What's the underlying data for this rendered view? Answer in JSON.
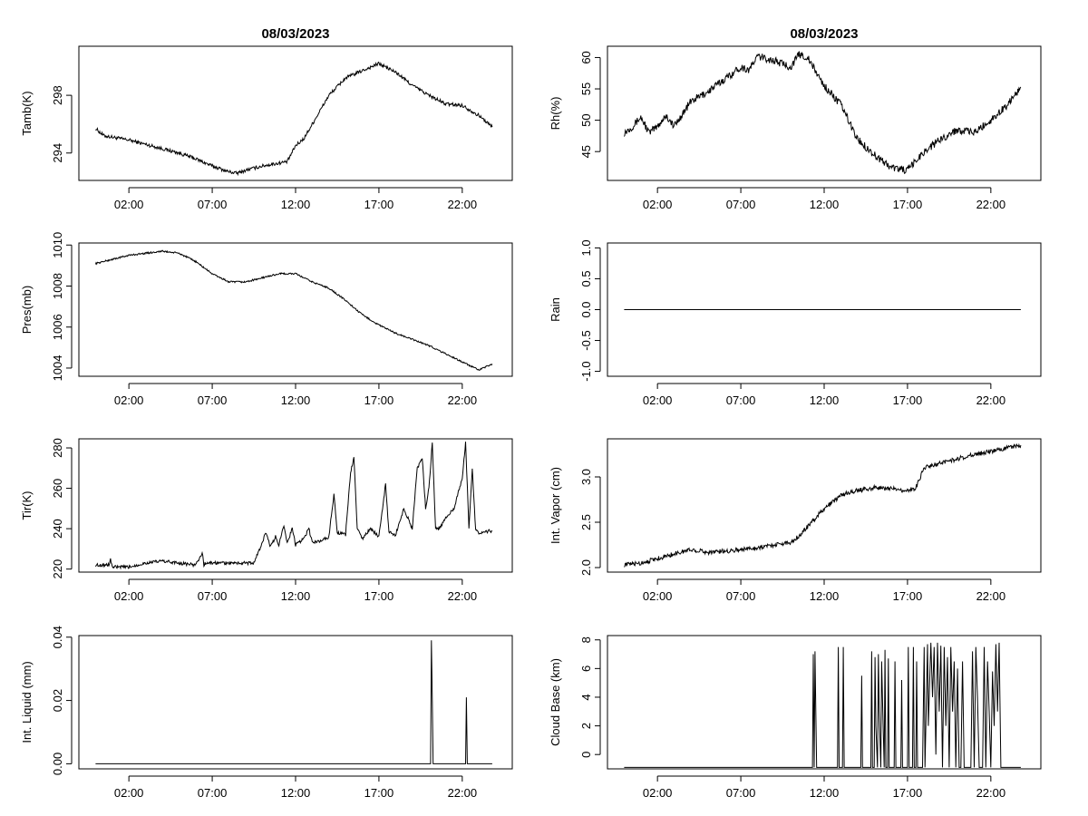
{
  "chart_data": [
    {
      "type": "line",
      "title": "08/03/2023",
      "xlabel": "",
      "ylabel": "Tamb(K)",
      "x_ticks": [
        2,
        7,
        12,
        17,
        22
      ],
      "x_tick_labels": [
        "02:00",
        "07:00",
        "12:00",
        "17:00",
        "22:00"
      ],
      "xlim": [
        -1,
        25
      ],
      "y_ticks": [
        294,
        298
      ],
      "y_tick_labels": [
        "294",
        "298"
      ],
      "ylim": [
        292.1,
        301.4
      ],
      "series": [
        {
          "name": "Tamb(K)",
          "x": [
            0,
            0.5,
            1,
            2,
            3,
            4,
            5,
            6,
            7,
            8,
            8.5,
            9,
            10,
            11,
            11.5,
            12,
            12.5,
            13,
            13.5,
            14,
            15,
            16,
            17,
            18,
            19,
            20,
            21,
            22,
            23,
            23.8
          ],
          "y": [
            295.7,
            295.2,
            295.1,
            294.9,
            294.6,
            294.3,
            294,
            293.6,
            293.1,
            292.7,
            292.6,
            292.8,
            293.1,
            293.3,
            293.4,
            294.5,
            295,
            296,
            297,
            298,
            299.2,
            299.7,
            300.2,
            299.6,
            298.7,
            298,
            297.4,
            297.3,
            296.6,
            295.8
          ]
        }
      ]
    },
    {
      "type": "line",
      "title": "08/03/2023",
      "xlabel": "",
      "ylabel": "Rh(%)",
      "x_ticks": [
        2,
        7,
        12,
        17,
        22
      ],
      "x_tick_labels": [
        "02:00",
        "07:00",
        "12:00",
        "17:00",
        "22:00"
      ],
      "xlim": [
        -1,
        25
      ],
      "y_ticks": [
        45,
        50,
        55,
        60
      ],
      "y_tick_labels": [
        "45",
        "50",
        "55",
        "60"
      ],
      "ylim": [
        40.4,
        61.8
      ],
      "series": [
        {
          "name": "Rh(%)",
          "x": [
            0,
            0.5,
            1,
            1.5,
            2,
            2.5,
            3,
            3.5,
            4,
            5,
            6,
            7,
            7.5,
            8,
            9,
            10,
            10.5,
            11,
            12,
            13,
            14,
            15,
            16,
            17,
            18,
            19,
            20,
            21,
            22,
            23,
            23.8
          ],
          "y": [
            48,
            49,
            50.5,
            48,
            49,
            50.8,
            49,
            51,
            53,
            54.5,
            56.5,
            58.5,
            58,
            60.2,
            59.5,
            58.5,
            60.5,
            60,
            55.5,
            52.5,
            47,
            44.5,
            42.5,
            42,
            45,
            47,
            48.5,
            48,
            50,
            52.5,
            55.3
          ]
        }
      ]
    },
    {
      "type": "line",
      "title": "",
      "xlabel": "",
      "ylabel": "Pres(mb)",
      "x_ticks": [
        2,
        7,
        12,
        17,
        22
      ],
      "x_tick_labels": [
        "02:00",
        "07:00",
        "12:00",
        "17:00",
        "22:00"
      ],
      "xlim": [
        -1,
        25
      ],
      "y_ticks": [
        1004,
        1006,
        1008,
        1010
      ],
      "y_tick_labels": [
        "1004",
        "1006",
        "1008",
        "1010"
      ],
      "ylim": [
        1003.6,
        1010.1
      ],
      "series": [
        {
          "name": "Pres(mb)",
          "x": [
            0,
            1,
            2,
            3,
            4,
            5,
            6,
            7,
            8,
            9,
            10,
            11,
            12,
            13,
            14,
            15,
            16,
            17,
            18,
            19,
            20,
            21,
            22,
            23,
            23.8
          ],
          "y": [
            1009.1,
            1009.3,
            1009.5,
            1009.6,
            1009.7,
            1009.6,
            1009.2,
            1008.6,
            1008.2,
            1008.2,
            1008.4,
            1008.6,
            1008.6,
            1008.2,
            1007.9,
            1007.3,
            1006.6,
            1006.1,
            1005.7,
            1005.4,
            1005.1,
            1004.7,
            1004.3,
            1003.9,
            1004.2
          ]
        }
      ]
    },
    {
      "type": "line",
      "title": "",
      "xlabel": "",
      "ylabel": "Rain",
      "x_ticks": [
        2,
        7,
        12,
        17,
        22
      ],
      "x_tick_labels": [
        "02:00",
        "07:00",
        "12:00",
        "17:00",
        "22:00"
      ],
      "xlim": [
        -1,
        25
      ],
      "y_ticks": [
        -1.0,
        -0.5,
        0.0,
        0.5,
        1.0
      ],
      "y_tick_labels": [
        "-1.0",
        "-0.5",
        "0.0",
        "0.5",
        "1.0"
      ],
      "ylim": [
        -1.08,
        1.08
      ],
      "series": [
        {
          "name": "Rain",
          "x": [
            0,
            23.8
          ],
          "y": [
            0,
            0
          ]
        }
      ]
    },
    {
      "type": "line",
      "title": "",
      "xlabel": "",
      "ylabel": "Tir(K)",
      "x_ticks": [
        2,
        7,
        12,
        17,
        22
      ],
      "x_tick_labels": [
        "02:00",
        "07:00",
        "12:00",
        "17:00",
        "22:00"
      ],
      "xlim": [
        -1,
        25
      ],
      "y_ticks": [
        220,
        240,
        260,
        280
      ],
      "y_tick_labels": [
        "220",
        "240",
        "260",
        "280"
      ],
      "ylim": [
        218.5,
        284.5
      ],
      "series": [
        {
          "name": "Tir(K)",
          "x": [
            0,
            0.8,
            0.9,
            1,
            2,
            3,
            4,
            5,
            6,
            6.4,
            6.5,
            6.6,
            7,
            8,
            9,
            9.5,
            10,
            10.2,
            10.5,
            10.8,
            11,
            11.3,
            11.5,
            11.8,
            12,
            12.5,
            12.8,
            13,
            13.5,
            14,
            14.3,
            14.5,
            15,
            15.3,
            15.5,
            15.7,
            16,
            16.5,
            17,
            17.4,
            17.6,
            18,
            18.5,
            19,
            19.3,
            19.6,
            19.8,
            20,
            20.2,
            20.4,
            20.6,
            21,
            21.5,
            22,
            22.2,
            22.4,
            22.6,
            22.8,
            23,
            23.8
          ],
          "y": [
            222,
            222,
            225,
            221,
            221,
            223,
            224,
            223,
            222,
            228,
            222,
            223,
            223,
            223,
            223,
            223,
            233,
            238,
            231,
            236,
            232,
            242,
            233,
            240,
            232,
            235,
            240,
            233,
            234,
            236,
            257,
            238,
            237,
            268,
            275,
            240,
            235,
            240,
            236,
            262,
            238,
            237,
            250,
            240,
            270,
            275,
            250,
            260,
            282,
            240,
            240,
            245,
            250,
            265,
            283,
            240,
            270,
            240,
            238,
            239
          ]
        }
      ]
    },
    {
      "type": "line",
      "title": "",
      "xlabel": "",
      "ylabel": "Int. Vapor (cm)",
      "x_ticks": [
        2,
        7,
        12,
        17,
        22
      ],
      "x_tick_labels": [
        "02:00",
        "07:00",
        "12:00",
        "17:00",
        "22:00"
      ],
      "xlim": [
        -1,
        25
      ],
      "y_ticks": [
        2.0,
        2.5,
        3.0
      ],
      "y_tick_labels": [
        "2.0",
        "2.5",
        "3.0"
      ],
      "ylim": [
        1.95,
        3.42
      ],
      "series": [
        {
          "name": "Int. Vapor (cm)",
          "x": [
            0,
            1,
            2,
            3,
            4,
            5,
            6,
            7,
            8,
            9,
            10,
            10.5,
            11,
            11.5,
            12,
            12.5,
            13,
            14,
            15,
            16,
            17,
            17.5,
            18,
            19,
            20,
            21,
            22,
            23,
            23.8
          ],
          "y": [
            2.03,
            2.05,
            2.1,
            2.15,
            2.2,
            2.17,
            2.18,
            2.2,
            2.22,
            2.25,
            2.28,
            2.35,
            2.45,
            2.55,
            2.65,
            2.72,
            2.8,
            2.85,
            2.88,
            2.87,
            2.85,
            2.88,
            3.1,
            3.15,
            3.2,
            3.25,
            3.28,
            3.32,
            3.35
          ]
        }
      ]
    },
    {
      "type": "line",
      "title": "",
      "xlabel": "",
      "ylabel": "Int. Liquid (mm)",
      "x_ticks": [
        2,
        7,
        12,
        17,
        22
      ],
      "x_tick_labels": [
        "02:00",
        "07:00",
        "12:00",
        "17:00",
        "22:00"
      ],
      "xlim": [
        -1,
        25
      ],
      "y_ticks": [
        0.0,
        0.02,
        0.04
      ],
      "y_tick_labels": [
        "0.00",
        "0.02",
        "0.04"
      ],
      "ylim": [
        -0.0016,
        0.0405
      ],
      "series": [
        {
          "name": "Int. Liquid (mm)",
          "x": [
            0,
            20.1,
            20.15,
            20.2,
            20.25,
            22.2,
            22.25,
            22.3,
            22.35,
            23.8
          ],
          "y": [
            0,
            0,
            0.039,
            0.02,
            0,
            0,
            0.021,
            0,
            0,
            0
          ]
        }
      ]
    },
    {
      "type": "line",
      "title": "",
      "xlabel": "",
      "ylabel": "Cloud Base (km)",
      "x_ticks": [
        2,
        7,
        12,
        17,
        22
      ],
      "x_tick_labels": [
        "02:00",
        "07:00",
        "12:00",
        "17:00",
        "22:00"
      ],
      "xlim": [
        -1,
        25
      ],
      "y_ticks": [
        0,
        2,
        4,
        6,
        8
      ],
      "y_tick_labels": [
        "0",
        "2",
        "4",
        "6",
        "8"
      ],
      "ylim": [
        -1.0,
        8.3
      ],
      "series": [
        {
          "name": "Cloud Base (km)",
          "x": [
            0,
            11.3,
            11.35,
            11.4,
            11.45,
            11.5,
            11.55,
            12.8,
            12.85,
            12.9,
            13.1,
            13.15,
            13.2,
            14.2,
            14.25,
            14.3,
            14.8,
            14.85,
            14.9,
            15,
            15.05,
            15.1,
            15.2,
            15.25,
            15.3,
            15.4,
            15.45,
            15.5,
            15.6,
            15.65,
            15.7,
            15.8,
            15.85,
            15.9,
            16.2,
            16.25,
            16.3,
            16.6,
            16.65,
            16.7,
            17,
            17.05,
            17.1,
            17.3,
            17.35,
            17.4,
            17.5,
            17.55,
            17.6,
            17.9,
            18,
            18.05,
            18.2,
            18.25,
            18.4,
            18.5,
            18.6,
            18.7,
            18.8,
            18.9,
            19,
            19.1,
            19.2,
            19.3,
            19.4,
            19.5,
            19.6,
            19.7,
            19.8,
            19.9,
            20,
            20.1,
            20.2,
            20.3,
            20.4,
            20.8,
            20.9,
            21,
            21.1,
            21.2,
            21.3,
            21.5,
            21.6,
            21.7,
            21.8,
            21.9,
            22,
            22.1,
            22.2,
            22.3,
            22.4,
            22.5,
            22.6,
            22.7,
            22.8,
            23.8
          ],
          "y": [
            -0.9,
            -0.9,
            7,
            -0.9,
            7.2,
            3,
            -0.9,
            -0.9,
            7.5,
            -0.9,
            -0.9,
            7.5,
            -0.9,
            -0.9,
            5.5,
            -0.9,
            -0.9,
            7.2,
            -0.9,
            -0.9,
            6.8,
            2,
            -0.9,
            7,
            3,
            -0.9,
            6.5,
            4,
            -0.9,
            7.3,
            -0.9,
            -0.9,
            6.7,
            -0.9,
            -0.9,
            6.5,
            -0.9,
            -0.9,
            5.2,
            -0.9,
            -0.9,
            7.5,
            -0.9,
            -0.9,
            7.5,
            -0.9,
            -0.9,
            6.5,
            -0.9,
            -0.9,
            7.5,
            -0.9,
            7.7,
            2,
            7.8,
            4,
            7.5,
            0,
            7.8,
            3,
            7.6,
            -0.9,
            7.5,
            2,
            6.8,
            -0.9,
            7.5,
            3,
            6.5,
            -0.9,
            6,
            -0.9,
            -0.9,
            6.5,
            -0.9,
            -0.9,
            7.2,
            -0.9,
            7.5,
            4,
            -0.9,
            -0.9,
            7.5,
            -0.9,
            6.5,
            3,
            -0.9,
            5.8,
            2,
            7.7,
            3,
            7.8,
            -0.9,
            -0.9,
            -0.9,
            -0.9
          ]
        }
      ]
    }
  ]
}
